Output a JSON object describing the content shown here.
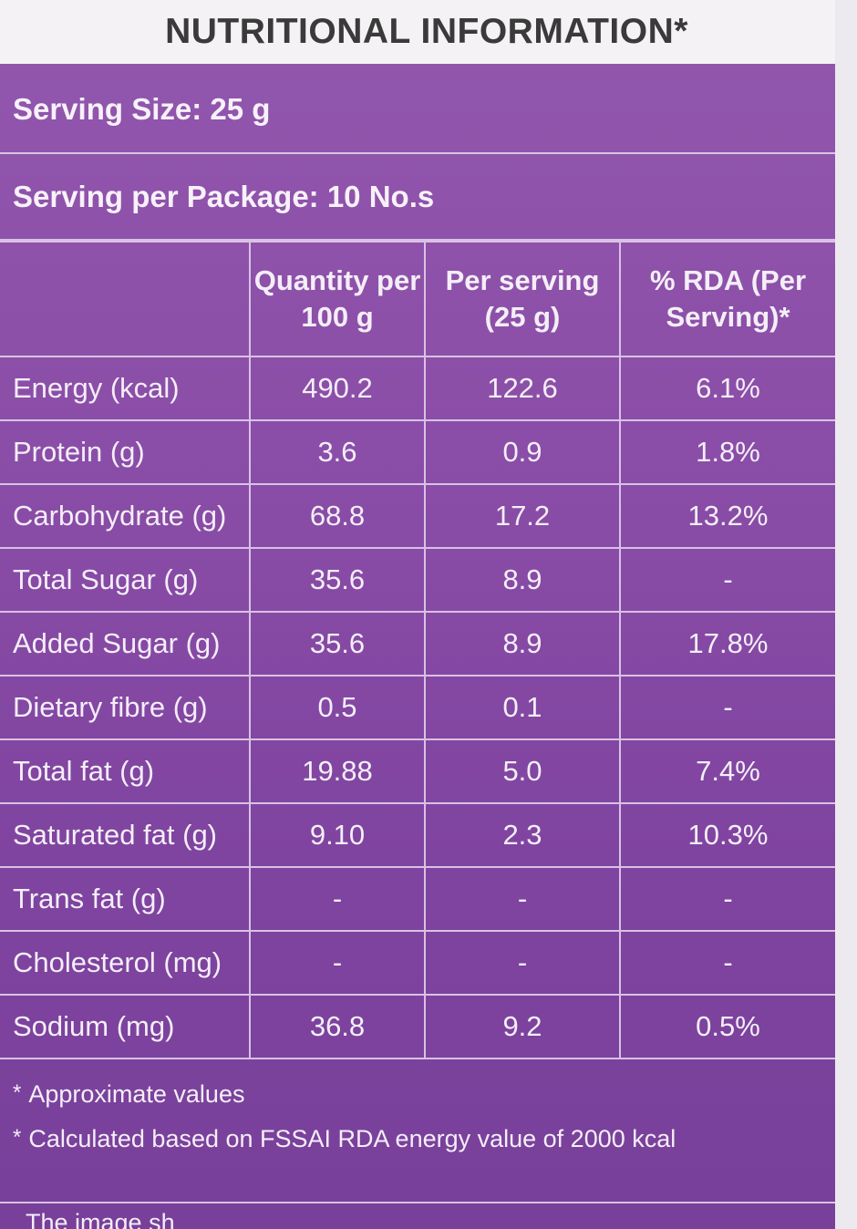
{
  "title": "NUTRITIONAL INFORMATION*",
  "serving_size": "Serving Size: 25 g",
  "serving_per_package": "Serving per Package: 10 No.s",
  "table": {
    "headers": [
      "",
      "Quantity per 100 g",
      "Per serving (25 g)",
      "% RDA (Per Serving)*"
    ],
    "rows": [
      {
        "name": "Energy (kcal)",
        "per100": "490.2",
        "serving": "122.6",
        "rda": "6.1%"
      },
      {
        "name": "Protein (g)",
        "per100": "3.6",
        "serving": "0.9",
        "rda": "1.8%"
      },
      {
        "name": "Carbohydrate (g)",
        "per100": "68.8",
        "serving": "17.2",
        "rda": "13.2%"
      },
      {
        "name": "Total Sugar (g)",
        "per100": "35.6",
        "serving": "8.9",
        "rda": "-"
      },
      {
        "name": "Added Sugar (g)",
        "per100": "35.6",
        "serving": "8.9",
        "rda": "17.8%"
      },
      {
        "name": "Dietary fibre (g)",
        "per100": "0.5",
        "serving": "0.1",
        "rda": "-"
      },
      {
        "name": "Total fat (g)",
        "per100": "19.88",
        "serving": "5.0",
        "rda": "7.4%"
      },
      {
        "name": "Saturated fat (g)",
        "per100": "9.10",
        "serving": "2.3",
        "rda": "10.3%"
      },
      {
        "name": "Trans fat (g)",
        "per100": "-",
        "serving": "-",
        "rda": "-"
      },
      {
        "name": "Cholesterol (mg)",
        "per100": "-",
        "serving": "-",
        "rda": "-"
      },
      {
        "name": "Sodium (mg)",
        "per100": "36.8",
        "serving": "9.2",
        "rda": "0.5%"
      }
    ]
  },
  "footnotes": [
    {
      "marker": "*",
      "text": "Approximate values"
    },
    {
      "marker": "*",
      "text": "Calculated based on FSSAI RDA energy value of 2000 kcal"
    }
  ],
  "bottom_text": "The image sh",
  "colors": {
    "background": "#8b4ea8",
    "title_bar": "#f4f2f4",
    "border": "#d9c2e4"
  }
}
